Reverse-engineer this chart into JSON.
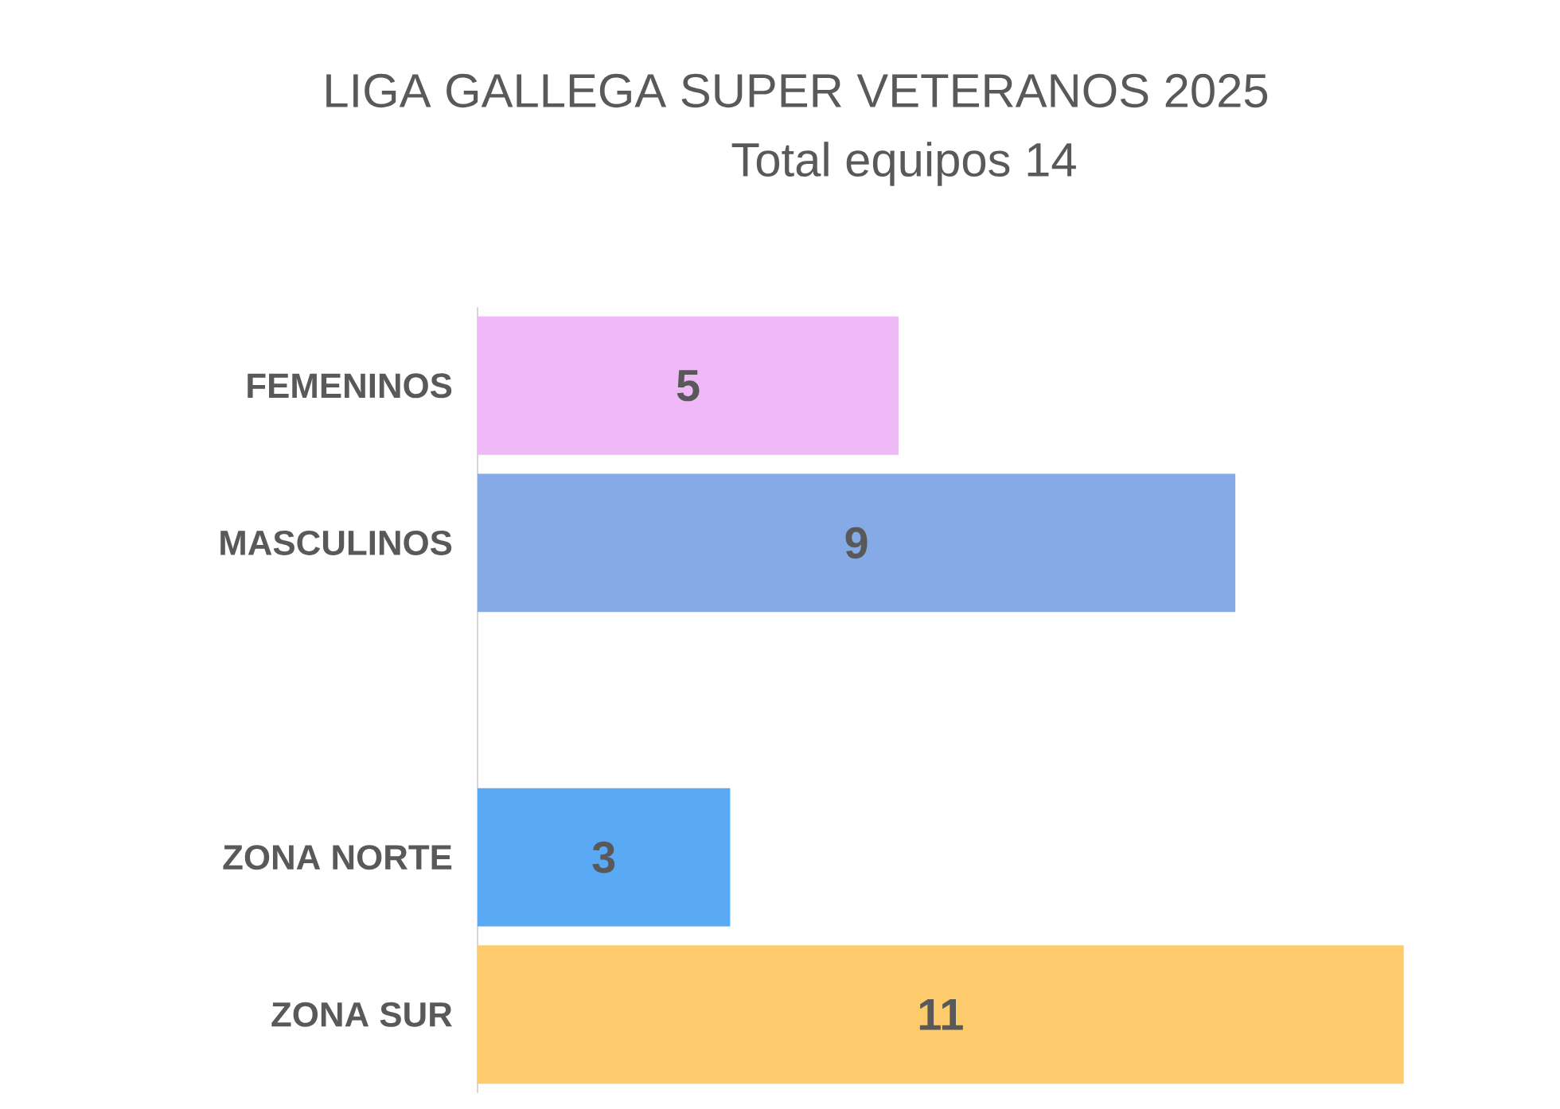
{
  "chart_data": {
    "type": "bar",
    "orientation": "horizontal",
    "title": "LIGA GALLEGA SUPER VETERANOS 2025",
    "subtitle": "Total equipos 14",
    "categories": [
      "FEMENINOS",
      "MASCULINOS",
      null,
      "ZONA NORTE",
      "ZONA SUR"
    ],
    "values": [
      5,
      9,
      null,
      3,
      11
    ],
    "colors": [
      "#efb9f7",
      "#86aae6",
      "#ffffff",
      "#5aa9f4",
      "#fdcb6b"
    ],
    "data_labels": true
  }
}
